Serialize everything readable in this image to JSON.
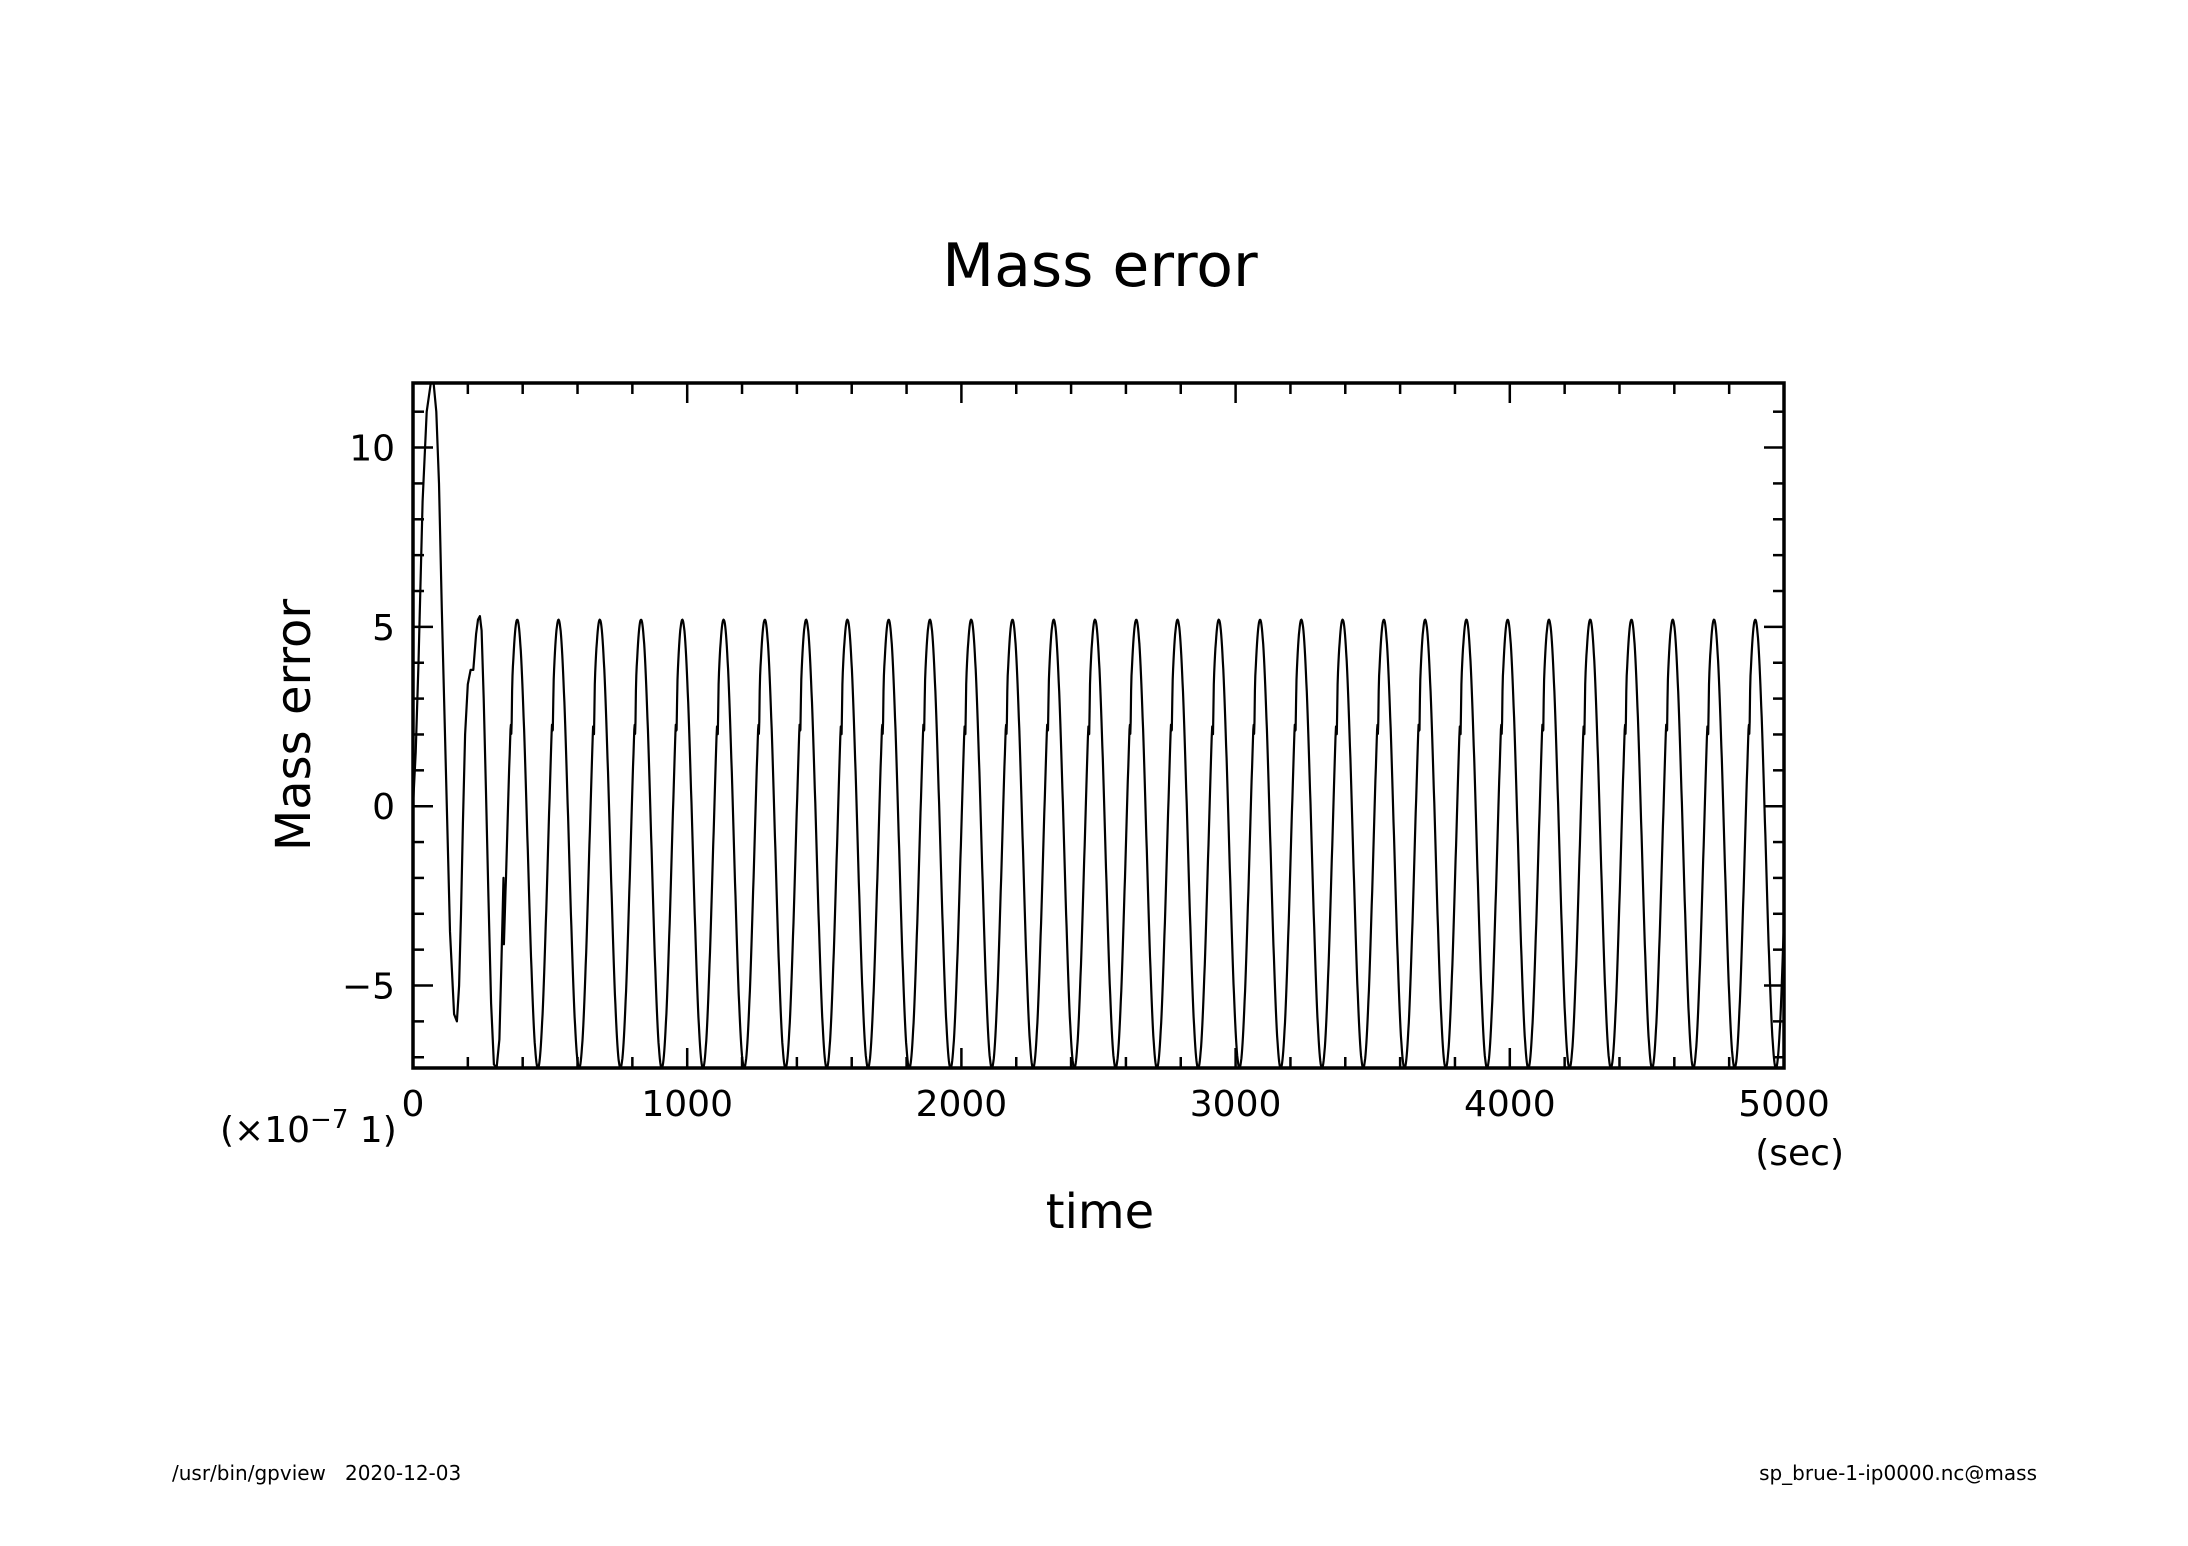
{
  "chart_data": {
    "type": "line",
    "title": "Mass error",
    "xlabel": "time",
    "ylabel": "Mass error",
    "x_unit": "(sec)",
    "y_scale_note_prefix": "(×10",
    "y_scale_note_exp": "−7",
    "y_scale_note_suffix": " 1)",
    "xlim": [
      0,
      5000
    ],
    "ylim": [
      -7.3,
      11.8
    ],
    "x_ticks": [
      0,
      1000,
      2000,
      3000,
      4000,
      5000
    ],
    "x_tick_labels": [
      "0",
      "1000",
      "2000",
      "3000",
      "4000",
      "5000"
    ],
    "y_ticks": [
      -5,
      0,
      5,
      10
    ],
    "y_tick_labels": [
      "−5",
      "0",
      "5",
      "10"
    ],
    "grid": false,
    "series": [
      {
        "color": "#000000",
        "x": [
          0,
          10,
          20,
          35,
          50,
          65,
          75,
          85,
          95,
          105,
          120,
          135,
          150,
          160,
          168,
          175,
          182,
          190,
          200,
          210,
          220,
          230,
          237,
          244,
          250,
          258,
          266,
          275,
          285,
          295,
          305,
          315,
          322,
          330
        ],
        "values": [
          0.0,
          1.5,
          4.0,
          8.5,
          11.0,
          11.8,
          11.8,
          11.0,
          9.0,
          5.5,
          1.0,
          -3.5,
          -5.8,
          -6.0,
          -5.0,
          -3.0,
          -0.5,
          2.0,
          3.4,
          3.8,
          3.8,
          4.8,
          5.2,
          5.3,
          4.9,
          3.0,
          0.5,
          -2.5,
          -5.5,
          -7.2,
          -7.3,
          -6.5,
          -4.5,
          -2.0
        ]
      }
    ],
    "oscillation": {
      "period": 150.5,
      "min": -7.3,
      "max": 5.2,
      "plateau": 3.0
    }
  },
  "footer": {
    "left": "/usr/bin/gpview   2020-12-03",
    "right": "sp_brue-1-ip0000.nc@mass"
  }
}
